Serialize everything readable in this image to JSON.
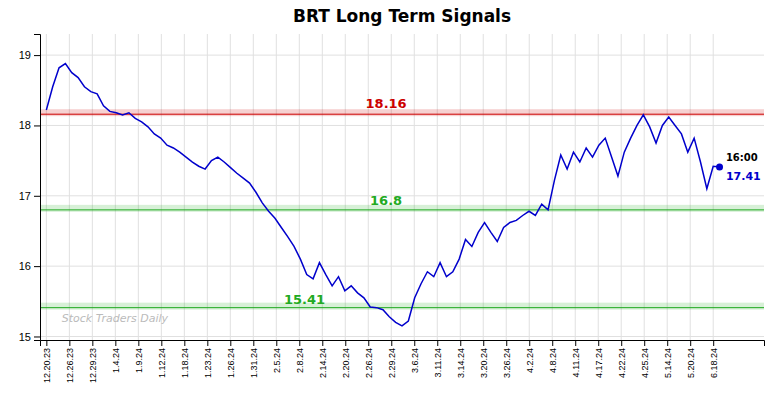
{
  "chart_data": {
    "type": "line",
    "title": "BRT Long Term Signals",
    "values": [
      18.22,
      18.55,
      18.82,
      18.88,
      18.75,
      18.68,
      18.55,
      18.48,
      18.45,
      18.28,
      18.2,
      18.18,
      18.15,
      18.18,
      18.1,
      18.05,
      17.98,
      17.88,
      17.82,
      17.72,
      17.68,
      17.62,
      17.55,
      17.48,
      17.42,
      17.38,
      17.5,
      17.55,
      17.48,
      17.4,
      17.32,
      17.25,
      17.18,
      17.05,
      16.9,
      16.78,
      16.68,
      16.55,
      16.42,
      16.28,
      16.1,
      15.88,
      15.82,
      16.05,
      15.88,
      15.72,
      15.85,
      15.65,
      15.72,
      15.62,
      15.55,
      15.42,
      15.41,
      15.38,
      15.28,
      15.2,
      15.15,
      15.22,
      15.55,
      15.75,
      15.92,
      15.85,
      16.05,
      15.85,
      15.92,
      16.1,
      16.38,
      16.28,
      16.48,
      16.62,
      16.48,
      16.35,
      16.55,
      16.62,
      16.65,
      16.72,
      16.78,
      16.72,
      16.88,
      16.8,
      17.22,
      17.58,
      17.38,
      17.62,
      17.48,
      17.68,
      17.55,
      17.72,
      17.82,
      17.55,
      17.28,
      17.62,
      17.82,
      18.0,
      18.15,
      17.98,
      17.75,
      18.0,
      18.12,
      18.0,
      17.88,
      17.62,
      17.82,
      17.48,
      17.1,
      17.42,
      17.41
    ],
    "color": "#0000cc",
    "hlines": [
      {
        "value": 18.16,
        "color": "#cc0000",
        "label": "18.16"
      },
      {
        "value": 16.8,
        "color": "#22aa22",
        "label": "16.8"
      },
      {
        "value": 15.41,
        "color": "#22aa22",
        "label": "15.41"
      }
    ],
    "last_point_labels": [
      "16:00",
      "17.41"
    ],
    "watermark": "Stock Traders Daily",
    "xlim": [
      -1,
      113
    ],
    "xticks": [
      {
        "value": 0,
        "label": "12.20.23"
      },
      {
        "value": 3.62069,
        "label": "12.26.23"
      },
      {
        "value": 7.241379,
        "label": "12.29.23"
      },
      {
        "value": 10.862069,
        "label": "1.4.24"
      },
      {
        "value": 14.482759,
        "label": "1.9.24"
      },
      {
        "value": 18.103448,
        "label": "1.12.24"
      },
      {
        "value": 21.724138,
        "label": "1.18.24"
      },
      {
        "value": 25.344828,
        "label": "1.23.24"
      },
      {
        "value": 28.965517,
        "label": "1.26.24"
      },
      {
        "value": 32.586207,
        "label": "1.31.24"
      },
      {
        "value": 36.206897,
        "label": "2.5.24"
      },
      {
        "value": 39.827586,
        "label": "2.8.24"
      },
      {
        "value": 43.448276,
        "label": "2.14.24"
      },
      {
        "value": 47.068966,
        "label": "2.20.24"
      },
      {
        "value": 50.689655,
        "label": "2.26.24"
      },
      {
        "value": 54.310345,
        "label": "2.29.24"
      },
      {
        "value": 57.931034,
        "label": "3.6.24"
      },
      {
        "value": 61.551724,
        "label": "3.11.24"
      },
      {
        "value": 65.172414,
        "label": "3.14.24"
      },
      {
        "value": 68.793103,
        "label": "3.20.24"
      },
      {
        "value": 72.413793,
        "label": "3.26.24"
      },
      {
        "value": 76.034483,
        "label": "4.2.24"
      },
      {
        "value": 79.655172,
        "label": "4.8.24"
      },
      {
        "value": 83.275862,
        "label": "4.11.24"
      },
      {
        "value": 86.896552,
        "label": "4.17.24"
      },
      {
        "value": 90.517241,
        "label": "4.22.24"
      },
      {
        "value": 94.137931,
        "label": "4.25.24"
      },
      {
        "value": 97.758621,
        "label": "5.14.24"
      },
      {
        "value": 101.37931,
        "label": "5.20.24"
      },
      {
        "value": 105,
        "label": "6.18.24"
      }
    ],
    "ylim": [
      14.95,
      19.3
    ],
    "yticks": [
      15,
      16,
      17,
      18,
      19
    ],
    "grid": true
  }
}
